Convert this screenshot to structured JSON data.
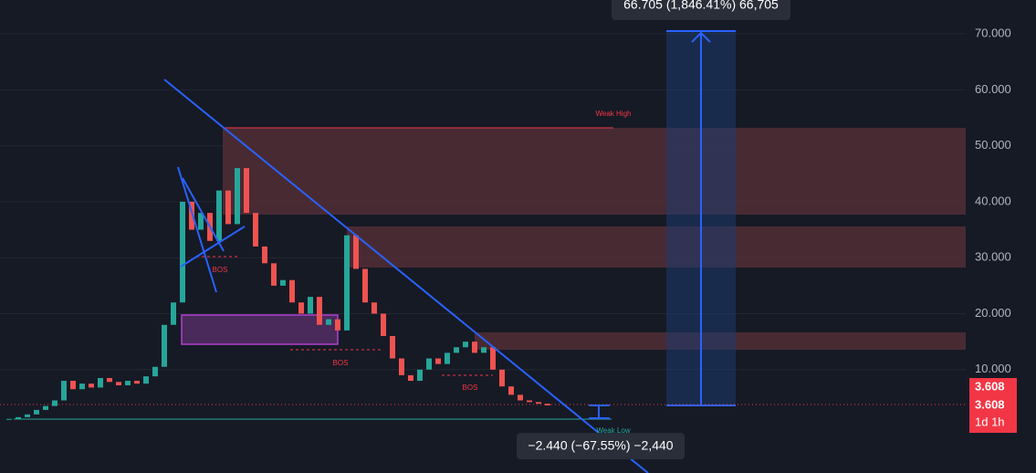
{
  "chart_data": {
    "type": "candlestick",
    "values": [
      1.2,
      1.5,
      2.0,
      2.8,
      3.5,
      4.5,
      8.0,
      6.5,
      7.5,
      6.8,
      8.5,
      7.8,
      7.2,
      8.0,
      7.5,
      8.8,
      10.5,
      18,
      22,
      40,
      35,
      38,
      33,
      42,
      36,
      46,
      38,
      32,
      29,
      25,
      26,
      22,
      20,
      23,
      18,
      19,
      17,
      34,
      28,
      22,
      20,
      16,
      12,
      9,
      8,
      10,
      12,
      11,
      13,
      14,
      15,
      13,
      14,
      10,
      7,
      5.5,
      4.5,
      4.2,
      3.9,
      3.608
    ],
    "up_color": "#26a69a",
    "down_color": "#ef5350",
    "ylim": [
      -8.47,
      76.04
    ],
    "yticks": [
      {
        "value": 10,
        "label": "10.000"
      },
      {
        "value": 20,
        "label": "20.000"
      },
      {
        "value": 30,
        "label": "30.000"
      },
      {
        "value": 40,
        "label": "40.000"
      },
      {
        "value": 50,
        "label": "50.000"
      },
      {
        "value": 60,
        "label": "60.000"
      },
      {
        "value": 70,
        "label": "70.000"
      }
    ],
    "grid": true,
    "annotations": {
      "weak_high": "Weak High",
      "weak_low": "Weak Low",
      "bos": [
        "BOS",
        "BOS",
        "BOS"
      ],
      "measure_up": "66.705 (1,846.41%) 66,705",
      "measure_down": "−2.440 (−67.55%) −2,440"
    },
    "price_labels": [
      "3.608",
      "3.608",
      "1d 1h"
    ]
  }
}
